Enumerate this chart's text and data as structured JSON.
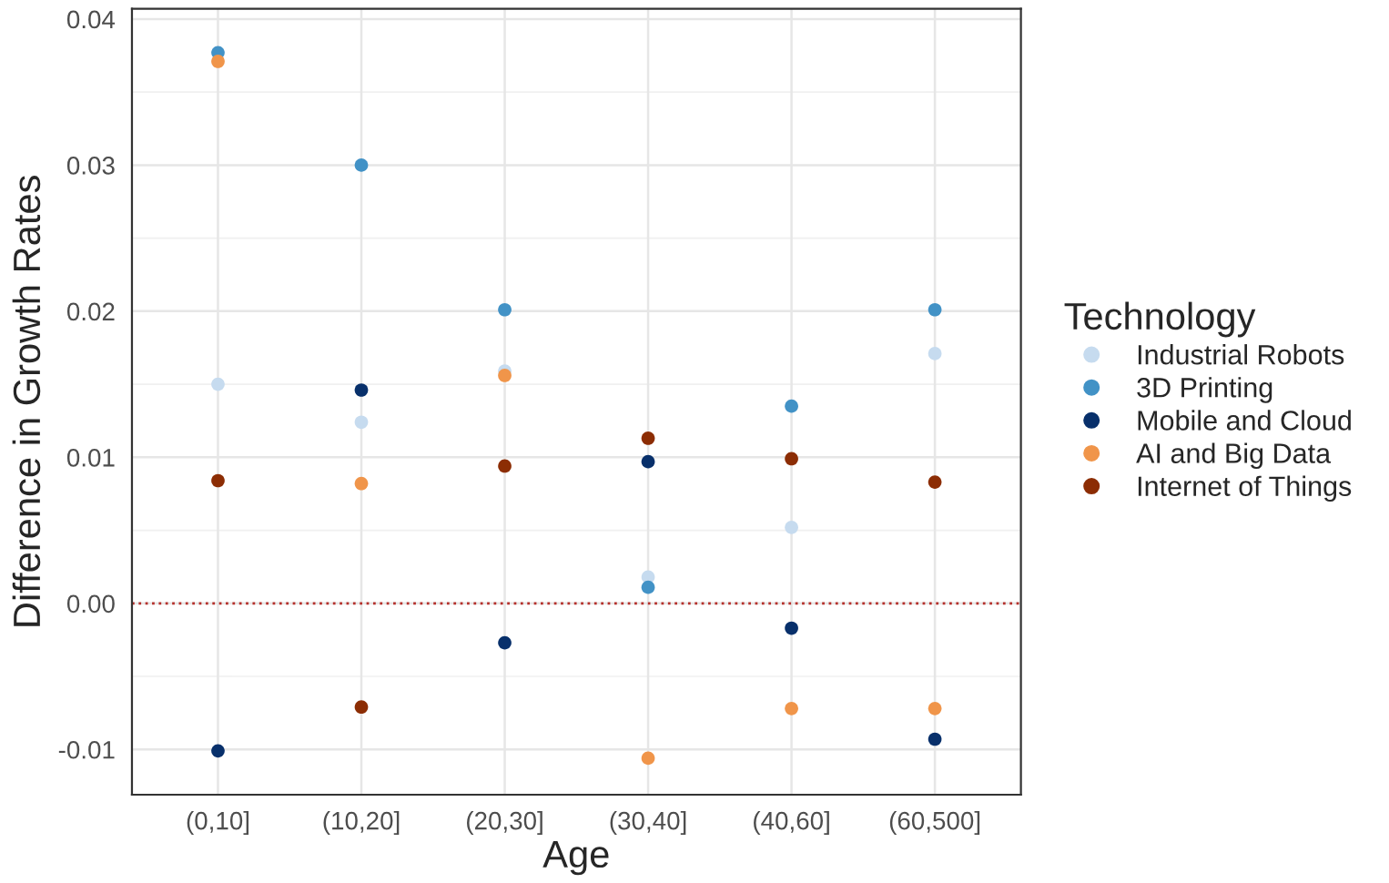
{
  "chart_data": {
    "type": "scatter",
    "xlabel": "Age",
    "ylabel": "Difference in Growth Rates",
    "legend_title": "Technology",
    "categories": [
      "(0,10]",
      "(10,20]",
      "(20,30]",
      "(30,40]",
      "(40,60]",
      "(60,500]"
    ],
    "series": [
      {
        "name": "Industrial Robots",
        "color": "#c6dbef",
        "values": [
          0.015,
          0.0124,
          0.0159,
          0.0018,
          0.0052,
          0.0171
        ]
      },
      {
        "name": "3D Printing",
        "color": "#4292c6",
        "values": [
          0.0377,
          0.03,
          0.0201,
          0.0011,
          0.0135,
          0.0201
        ]
      },
      {
        "name": "Mobile and Cloud",
        "color": "#08306b",
        "values": [
          -0.0101,
          0.0146,
          -0.0027,
          0.0097,
          -0.0017,
          -0.0093
        ]
      },
      {
        "name": "AI and Big Data",
        "color": "#f0954a",
        "values": [
          0.0371,
          0.0082,
          0.0156,
          -0.0106,
          -0.0072,
          -0.0072
        ]
      },
      {
        "name": "Internet of Things",
        "color": "#8c2d04",
        "values": [
          0.0084,
          -0.0071,
          0.0094,
          0.0113,
          0.0099,
          0.0083
        ]
      }
    ],
    "ylim": [
      -0.0131,
      0.0407
    ],
    "yticks": [
      {
        "value": -0.01,
        "label": "-0.01"
      },
      {
        "value": 0.0,
        "label": "0.00"
      },
      {
        "value": 0.01,
        "label": "0.01"
      },
      {
        "value": 0.02,
        "label": "0.02"
      },
      {
        "value": 0.03,
        "label": "0.03"
      },
      {
        "value": 0.04,
        "label": "0.04"
      }
    ],
    "ref_lines": [
      {
        "axis": "y",
        "value": 0,
        "color": "#b5312c",
        "line_style": "dotted"
      }
    ],
    "grid": true,
    "legend": "right",
    "marker": "circle"
  }
}
